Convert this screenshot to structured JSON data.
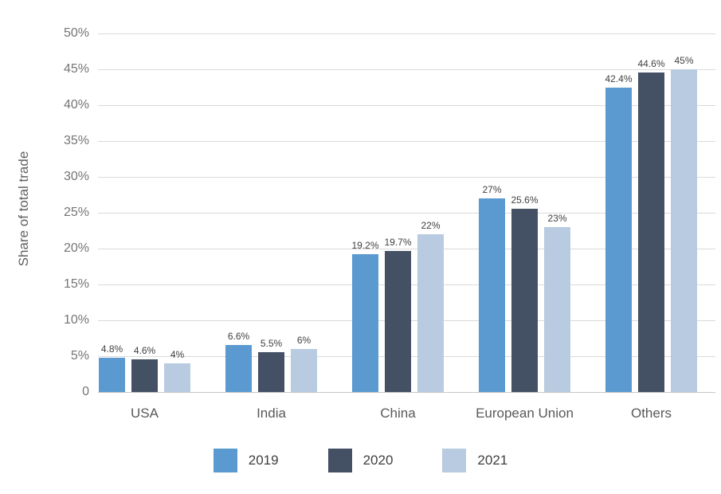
{
  "chart_data": {
    "type": "bar",
    "title": "",
    "xlabel": "",
    "ylabel": "Share of total trade",
    "categories": [
      "USA",
      "India",
      "China",
      "European Union",
      "Others"
    ],
    "series": [
      {
        "name": "2019",
        "color": "#5b9ad0",
        "values": [
          4.8,
          6.6,
          19.2,
          27,
          42.4
        ],
        "labels": [
          "4.8%",
          "6.6%",
          "19.2%",
          "27%",
          "42.4%"
        ]
      },
      {
        "name": "2020",
        "color": "#445063",
        "values": [
          4.6,
          5.5,
          19.7,
          25.6,
          44.6
        ],
        "labels": [
          "4.6%",
          "5.5%",
          "19.7%",
          "25.6%",
          "44.6%"
        ]
      },
      {
        "name": "2021",
        "color": "#b8cbe0",
        "values": [
          4,
          6,
          22,
          23,
          45
        ],
        "labels": [
          "4%",
          "6%",
          "22%",
          "23%",
          "45%"
        ]
      }
    ],
    "y_axis": {
      "min": 0,
      "max": 50,
      "step": 5,
      "tick_labels": [
        "0",
        "5%",
        "10%",
        "15%",
        "20%",
        "25%",
        "30%",
        "35%",
        "40%",
        "45%",
        "50%"
      ]
    },
    "grid": true,
    "legend_position": "bottom"
  },
  "colors": {
    "background": "#ffffff",
    "gridline": "#dadada",
    "baseline": "#c6c6c6",
    "tick_text": "#757575",
    "category_text": "#58595b",
    "data_label_text": "#404040",
    "legend_text": "#404040",
    "axis_title_text": "#616161"
  }
}
